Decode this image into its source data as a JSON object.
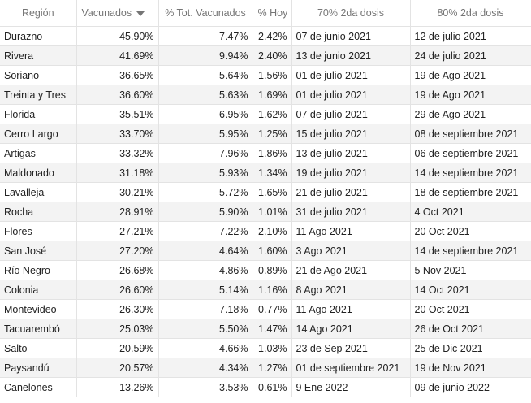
{
  "table": {
    "headers": {
      "region": "Región",
      "vacunados": "Vacunados",
      "pct_total": "% Tot. Vacunados",
      "pct_hoy": "% Hoy",
      "dosis70": "70% 2da dosis",
      "dosis80": "80% 2da dosis"
    },
    "sort": {
      "column": "vacunados",
      "direction": "descending",
      "icon": "sort-desc-icon"
    },
    "rows": [
      {
        "region": "Durazno",
        "vacunados": "45.90%",
        "pct_total": "7.47%",
        "pct_hoy": "2.42%",
        "dosis70": "07 de junio 2021",
        "dosis80": "12 de julio 2021"
      },
      {
        "region": "Rivera",
        "vacunados": "41.69%",
        "pct_total": "9.94%",
        "pct_hoy": "2.40%",
        "dosis70": "13 de junio 2021",
        "dosis80": "24 de julio 2021"
      },
      {
        "region": "Soriano",
        "vacunados": "36.65%",
        "pct_total": "5.64%",
        "pct_hoy": "1.56%",
        "dosis70": "01 de julio 2021",
        "dosis80": "19 de Ago 2021"
      },
      {
        "region": "Treinta y Tres",
        "vacunados": "36.60%",
        "pct_total": "5.63%",
        "pct_hoy": "1.69%",
        "dosis70": "01 de julio 2021",
        "dosis80": "19 de Ago 2021"
      },
      {
        "region": "Florida",
        "vacunados": "35.51%",
        "pct_total": "6.95%",
        "pct_hoy": "1.62%",
        "dosis70": "07 de julio 2021",
        "dosis80": "29 de Ago 2021"
      },
      {
        "region": "Cerro Largo",
        "vacunados": "33.70%",
        "pct_total": "5.95%",
        "pct_hoy": "1.25%",
        "dosis70": "15 de julio 2021",
        "dosis80": "08 de septiembre 2021"
      },
      {
        "region": "Artigas",
        "vacunados": "33.32%",
        "pct_total": "7.96%",
        "pct_hoy": "1.86%",
        "dosis70": "13 de julio 2021",
        "dosis80": "06 de septiembre 2021"
      },
      {
        "region": "Maldonado",
        "vacunados": "31.18%",
        "pct_total": "5.93%",
        "pct_hoy": "1.34%",
        "dosis70": "19 de julio 2021",
        "dosis80": "14 de septiembre 2021"
      },
      {
        "region": "Lavalleja",
        "vacunados": "30.21%",
        "pct_total": "5.72%",
        "pct_hoy": "1.65%",
        "dosis70": "21 de julio 2021",
        "dosis80": "18 de septiembre 2021"
      },
      {
        "region": "Rocha",
        "vacunados": "28.91%",
        "pct_total": "5.90%",
        "pct_hoy": "1.01%",
        "dosis70": "31 de julio 2021",
        "dosis80": "4 Oct 2021"
      },
      {
        "region": "Flores",
        "vacunados": "27.21%",
        "pct_total": "7.22%",
        "pct_hoy": "2.10%",
        "dosis70": "11 Ago 2021",
        "dosis80": "20 Oct 2021"
      },
      {
        "region": "San José",
        "vacunados": "27.20%",
        "pct_total": "4.64%",
        "pct_hoy": "1.60%",
        "dosis70": "3 Ago 2021",
        "dosis80": "14 de septiembre 2021"
      },
      {
        "region": "Río Negro",
        "vacunados": "26.68%",
        "pct_total": "4.86%",
        "pct_hoy": "0.89%",
        "dosis70": "21 de Ago 2021",
        "dosis80": "5 Nov 2021"
      },
      {
        "region": "Colonia",
        "vacunados": "26.60%",
        "pct_total": "5.14%",
        "pct_hoy": "1.16%",
        "dosis70": "8 Ago 2021",
        "dosis80": "14 Oct 2021"
      },
      {
        "region": "Montevideo",
        "vacunados": "26.30%",
        "pct_total": "7.18%",
        "pct_hoy": "0.77%",
        "dosis70": "11 Ago 2021",
        "dosis80": "20 Oct 2021"
      },
      {
        "region": "Tacuarembó",
        "vacunados": "25.03%",
        "pct_total": "5.50%",
        "pct_hoy": "1.47%",
        "dosis70": "14 Ago 2021",
        "dosis80": "26 de Oct 2021"
      },
      {
        "region": "Salto",
        "vacunados": "20.59%",
        "pct_total": "4.66%",
        "pct_hoy": "1.03%",
        "dosis70": "23 de Sep 2021",
        "dosis80": "25 de Dic 2021"
      },
      {
        "region": "Paysandú",
        "vacunados": "20.57%",
        "pct_total": "4.34%",
        "pct_hoy": "1.27%",
        "dosis70": "01 de septiembre 2021",
        "dosis80": "19 de Nov 2021"
      },
      {
        "region": "Canelones",
        "vacunados": "13.26%",
        "pct_total": "3.53%",
        "pct_hoy": "0.61%",
        "dosis70": "9 Ene 2022",
        "dosis80": "09 de junio 2022"
      }
    ]
  },
  "colors": {
    "header_text": "#757575",
    "row_alt": "#f3f3f3",
    "grid": "#e3e3e3",
    "text": "#222222"
  }
}
